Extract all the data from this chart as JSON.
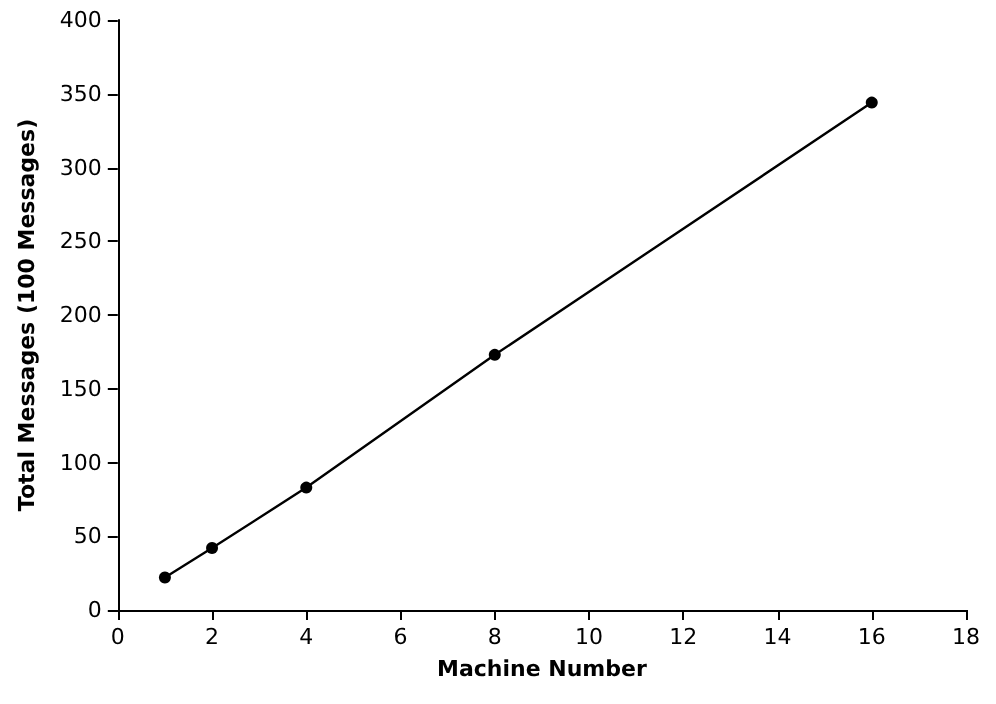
{
  "chart_data": {
    "type": "line",
    "xlabel": "Machine Number",
    "ylabel": "Total Messages (100 Messages)",
    "x": [
      1,
      2,
      4,
      8,
      16
    ],
    "series": [
      {
        "color": "#000000",
        "values": [
          22,
          42,
          83,
          173,
          344
        ]
      }
    ],
    "xlim": [
      0,
      18
    ],
    "xticks": [
      0,
      2,
      4,
      6,
      8,
      10,
      12,
      14,
      16,
      18
    ],
    "ylim": [
      0,
      400
    ],
    "yticks": [
      0,
      50,
      100,
      150,
      200,
      250,
      300,
      350,
      400
    ],
    "grid": false,
    "marker": "circle",
    "line_style": "solid"
  }
}
